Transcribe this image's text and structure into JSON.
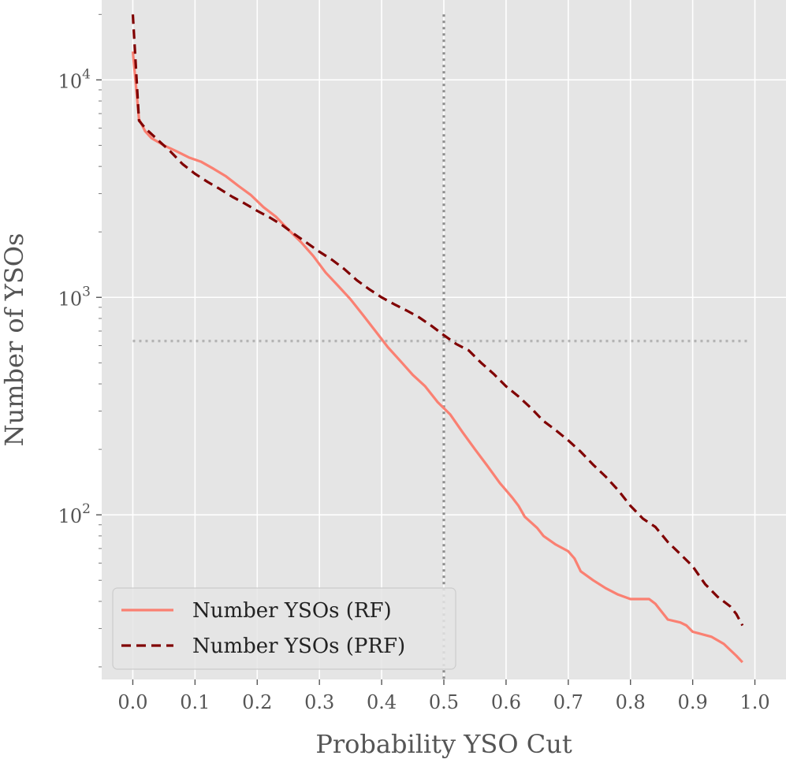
{
  "chart_data": {
    "type": "line",
    "title": "",
    "xlabel": "Probability YSO Cut",
    "ylabel": "Number of YSOs",
    "xlim": [
      -0.05,
      1.05
    ],
    "ylim": [
      17.5,
      23300
    ],
    "yscale": "log",
    "grid": true,
    "legend_position": "lower-left",
    "x_ticks": [
      0.0,
      0.1,
      0.2,
      0.3,
      0.4,
      0.5,
      0.6,
      0.7,
      0.8,
      0.9,
      1.0
    ],
    "x_tick_labels": [
      "0.0",
      "0.1",
      "0.2",
      "0.3",
      "0.4",
      "0.5",
      "0.6",
      "0.7",
      "0.8",
      "0.9",
      "1.0"
    ],
    "y_major_ticks": [
      {
        "value": 100,
        "base": "10",
        "exponent": "2"
      },
      {
        "value": 1000,
        "base": "10",
        "exponent": "3"
      },
      {
        "value": 10000,
        "base": "10",
        "exponent": "4"
      }
    ],
    "reference_lines": [
      {
        "orientation": "vertical",
        "x": 0.5,
        "y_from": 20000,
        "y_to": 17.5,
        "color": "#8c8c8c"
      },
      {
        "orientation": "horizontal",
        "y": 630,
        "x_from": 0.0,
        "x_to": 0.99,
        "color": "#b4b4b4"
      }
    ],
    "series": [
      {
        "name": "Number YSOs (RF)",
        "style": "solid",
        "color": "#fa8072",
        "x": [
          0.0,
          0.01,
          0.02,
          0.03,
          0.05,
          0.07,
          0.09,
          0.11,
          0.13,
          0.15,
          0.17,
          0.19,
          0.21,
          0.23,
          0.25,
          0.27,
          0.29,
          0.31,
          0.33,
          0.35,
          0.37,
          0.39,
          0.41,
          0.43,
          0.45,
          0.47,
          0.49,
          0.51,
          0.53,
          0.55,
          0.57,
          0.59,
          0.61,
          0.62,
          0.63,
          0.65,
          0.66,
          0.68,
          0.7,
          0.71,
          0.72,
          0.74,
          0.76,
          0.78,
          0.8,
          0.81,
          0.83,
          0.84,
          0.86,
          0.88,
          0.89,
          0.9,
          0.91,
          0.93,
          0.95,
          0.97,
          0.98
        ],
        "values": [
          13500,
          6600,
          5800,
          5400,
          5000,
          4700,
          4400,
          4200,
          3900,
          3600,
          3250,
          2950,
          2600,
          2350,
          2050,
          1800,
          1550,
          1300,
          1130,
          980,
          830,
          700,
          590,
          510,
          440,
          390,
          330,
          290,
          240,
          200,
          168,
          140,
          120,
          110,
          98,
          87,
          80,
          73,
          68,
          63,
          55,
          50,
          46,
          43,
          41,
          41,
          41,
          39,
          33,
          32,
          31,
          29,
          28.5,
          27.5,
          25.5,
          22.5,
          21
        ]
      },
      {
        "name": "Number YSOs (PRF)",
        "style": "dashed",
        "color": "#800000",
        "x": [
          0.0,
          0.01,
          0.02,
          0.04,
          0.06,
          0.08,
          0.1,
          0.12,
          0.14,
          0.16,
          0.18,
          0.2,
          0.22,
          0.24,
          0.26,
          0.28,
          0.3,
          0.32,
          0.34,
          0.36,
          0.38,
          0.4,
          0.42,
          0.44,
          0.46,
          0.48,
          0.5,
          0.52,
          0.54,
          0.56,
          0.58,
          0.6,
          0.62,
          0.64,
          0.66,
          0.68,
          0.7,
          0.72,
          0.74,
          0.76,
          0.78,
          0.8,
          0.82,
          0.84,
          0.86,
          0.88,
          0.9,
          0.92,
          0.94,
          0.96,
          0.97,
          0.98
        ],
        "values": [
          20000,
          6500,
          6000,
          5300,
          4700,
          4100,
          3700,
          3400,
          3150,
          2900,
          2700,
          2500,
          2330,
          2150,
          1950,
          1780,
          1620,
          1490,
          1350,
          1200,
          1090,
          1000,
          930,
          870,
          810,
          740,
          670,
          610,
          570,
          500,
          445,
          390,
          350,
          310,
          270,
          245,
          220,
          195,
          170,
          150,
          130,
          110,
          96,
          88,
          75,
          66,
          58,
          48,
          42,
          38,
          35,
          31
        ]
      }
    ]
  }
}
